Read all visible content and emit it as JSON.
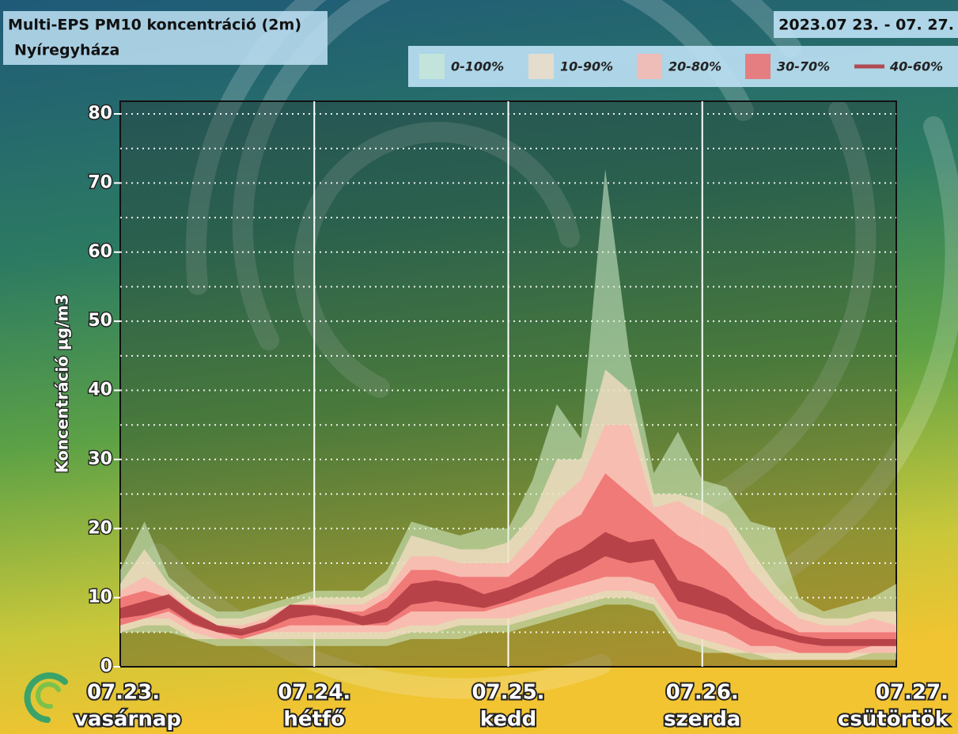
{
  "chart_data": {
    "type": "fan",
    "title": "Multi-EPS PM10 koncentráció (2m)",
    "subtitle": "Nyíregyháza",
    "date_range": "2023.07 23. - 07. 27.",
    "y_label": "Koncentráció µg/m3",
    "x": [
      0,
      0.125,
      0.25,
      0.375,
      0.5,
      0.625,
      0.75,
      0.875,
      1,
      1.125,
      1.25,
      1.375,
      1.5,
      1.625,
      1.75,
      1.875,
      2,
      2.125,
      2.25,
      2.375,
      2.5,
      2.625,
      2.75,
      2.875,
      3,
      3.125,
      3.25,
      3.375,
      3.5,
      3.625,
      3.75,
      3.875,
      4
    ],
    "xlim": [
      0,
      4
    ],
    "xticks": [
      {
        "value": 0,
        "label": "07.23."
      },
      {
        "value": 1,
        "label": "07.24."
      },
      {
        "value": 2,
        "label": "07.25."
      },
      {
        "value": 3,
        "label": "07.26."
      },
      {
        "value": 4,
        "label": "07.27."
      }
    ],
    "xtick_days": [
      "vasárnap",
      "hétfő",
      "kedd",
      "szerda",
      "csütörtök"
    ],
    "ylim": [
      0,
      80
    ],
    "yticks": [
      0,
      10,
      20,
      30,
      40,
      50,
      60,
      70,
      80
    ],
    "ygrid": [
      5,
      10,
      15,
      20,
      25,
      30,
      35,
      40,
      45,
      50,
      55,
      60,
      65,
      70,
      75,
      80
    ],
    "series": [
      {
        "name": "0-100%",
        "color": "rgba(214,240,205,0.55)",
        "high": [
          14,
          21,
          13,
          10,
          8,
          8,
          9,
          10,
          11,
          11,
          11,
          14,
          21,
          20,
          19,
          20,
          20,
          27,
          38,
          33,
          72,
          45,
          28,
          34,
          27,
          26,
          21,
          20,
          10,
          8,
          9,
          10,
          12
        ],
        "low": [
          5,
          5,
          5,
          4,
          3,
          3,
          3,
          3,
          3,
          3,
          3,
          3,
          4,
          4,
          4,
          5,
          5,
          6,
          7,
          8,
          9,
          9,
          8,
          3,
          2,
          2,
          1,
          1,
          1,
          1,
          1,
          1,
          1
        ]
      },
      {
        "name": "10-90%",
        "color": "rgba(246,222,196,0.75)",
        "high": [
          12,
          17,
          12,
          9,
          7,
          7,
          8,
          9,
          10,
          10,
          10,
          12,
          19,
          18,
          17,
          17,
          18,
          22,
          30,
          30,
          43,
          40,
          25,
          25,
          24,
          22,
          17,
          12,
          8,
          7,
          7,
          8,
          8
        ],
        "low": [
          5,
          6,
          6,
          4,
          4,
          4,
          4,
          4,
          4,
          4,
          4,
          4,
          5,
          5,
          6,
          6,
          6,
          7,
          8,
          9,
          10,
          10,
          9,
          4,
          3,
          2,
          2,
          1,
          1,
          1,
          1,
          2,
          2
        ]
      },
      {
        "name": "20-80%",
        "color": "rgba(250,185,175,0.85)",
        "high": [
          11,
          13,
          11,
          8,
          6,
          6,
          7,
          9,
          9,
          9,
          9,
          11,
          16,
          16,
          15,
          15,
          15,
          19,
          24,
          27,
          35,
          35,
          23,
          24,
          22,
          20,
          14,
          10,
          7,
          6,
          6,
          7,
          6
        ],
        "low": [
          6,
          7,
          7,
          5,
          4,
          4,
          5,
          5,
          5,
          5,
          5,
          5,
          6,
          6,
          7,
          7,
          7,
          8,
          9,
          10,
          11,
          11,
          10,
          5,
          4,
          3,
          2,
          2,
          2,
          2,
          2,
          2,
          2
        ]
      },
      {
        "name": "30-70%",
        "color": "rgba(238,110,110,0.85)",
        "high": [
          10,
          11,
          10,
          8,
          6,
          5,
          6,
          9,
          9,
          8,
          8,
          10,
          14,
          14,
          13,
          13,
          13,
          16,
          20,
          22,
          28,
          25,
          22,
          19,
          17,
          14,
          10,
          7,
          5,
          5,
          5,
          5,
          5
        ],
        "low": [
          6,
          7,
          8,
          6,
          5,
          4,
          5,
          6,
          6,
          6,
          6,
          6,
          8,
          8,
          8,
          8,
          9,
          10,
          11,
          12,
          13,
          13,
          12,
          7,
          6,
          5,
          3,
          3,
          2,
          2,
          2,
          3,
          3
        ]
      },
      {
        "name": "40-60%",
        "color": "rgba(176,60,66,0.9)",
        "high": [
          8.5,
          9.5,
          10.5,
          7.8,
          6,
          5.5,
          6.5,
          9,
          8.8,
          8.3,
          7.3,
          8.5,
          12,
          12.5,
          12,
          10.5,
          11.5,
          13,
          15.5,
          17,
          19.5,
          18,
          18.5,
          12.5,
          11.5,
          10,
          7.5,
          5.5,
          4.5,
          4,
          4,
          4,
          4
        ],
        "low": [
          7,
          7.5,
          8.5,
          6.2,
          5,
          4.5,
          5.5,
          7,
          7.5,
          7,
          6,
          6.5,
          9,
          9.5,
          9,
          8.5,
          9.5,
          11,
          12.5,
          14,
          16,
          15,
          15.5,
          9.5,
          8.5,
          7.5,
          5.5,
          4.5,
          3.5,
          3,
          3,
          3,
          3
        ]
      }
    ]
  }
}
